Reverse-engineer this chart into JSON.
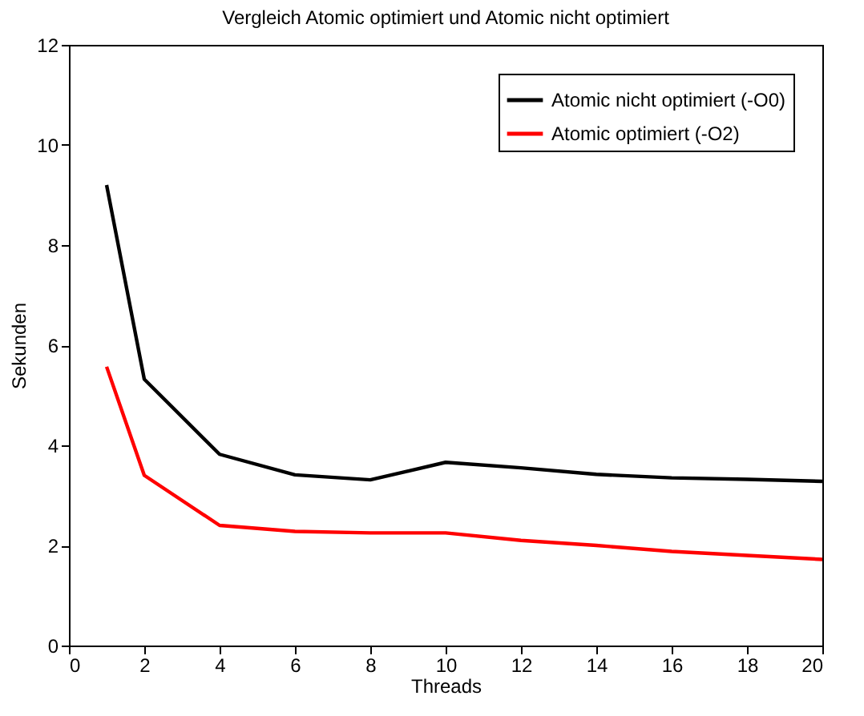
{
  "chart_data": {
    "type": "line",
    "title": "Vergleich Atomic optimiert und Atomic nicht optimiert",
    "xlabel": "Threads",
    "ylabel": "Sekunden",
    "x": [
      1,
      2,
      4,
      6,
      8,
      10,
      12,
      14,
      16,
      18,
      20
    ],
    "series": [
      {
        "name": "Atomic nicht optimiert (-O0)",
        "color": "#000000",
        "values": [
          9.2,
          5.32,
          3.82,
          3.41,
          3.31,
          3.66,
          3.55,
          3.42,
          3.35,
          3.32,
          3.28
        ]
      },
      {
        "name": "Atomic optimiert (-O2)",
        "color": "#ff0000",
        "values": [
          5.57,
          3.4,
          2.4,
          2.28,
          2.25,
          2.25,
          2.1,
          2.0,
          1.88,
          1.8,
          1.72
        ]
      }
    ],
    "xlim": [
      0,
      20
    ],
    "xticks": [
      0,
      2,
      4,
      6,
      8,
      10,
      12,
      14,
      16,
      18,
      20
    ],
    "ylim": [
      0,
      12
    ],
    "yticks": [
      0,
      2,
      4,
      6,
      8,
      10,
      12
    ],
    "grid": false,
    "legend": "top right",
    "marker": "none",
    "line_style": "solid"
  }
}
